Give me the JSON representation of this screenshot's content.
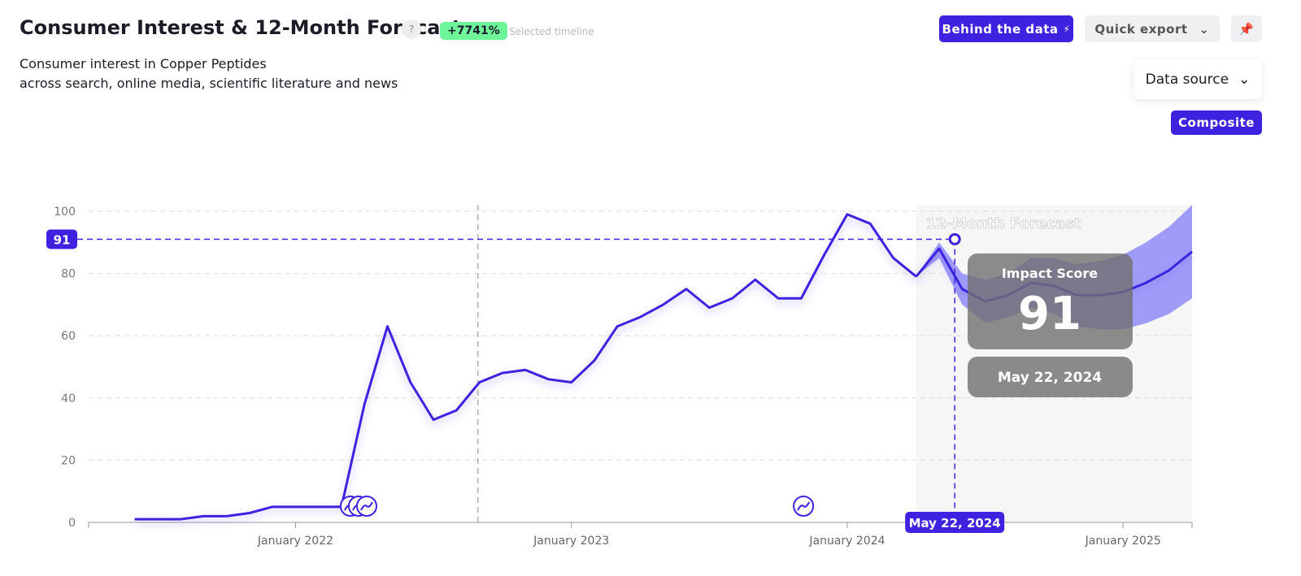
{
  "header": {
    "title": "Consumer Interest & 12-Month Forecast",
    "help": "?",
    "change_badge": "+7741%",
    "change_caption": "Selected timeline",
    "subtitle_lines": [
      "Consumer interest in Copper Peptides",
      "across search, online media, scientific literature and news"
    ]
  },
  "toolbar": {
    "behind_button": "Behind the data",
    "export_button": "Quick export",
    "source_dropdown": "Data source",
    "source_option": "Composite"
  },
  "chart_data": {
    "type": "line",
    "x": [
      "2021-06",
      "2021-07",
      "2021-08",
      "2021-09",
      "2021-10",
      "2021-11",
      "2021-12",
      "2022-01",
      "2022-02",
      "2022-03",
      "2022-04",
      "2022-05",
      "2022-06",
      "2022-07",
      "2022-08",
      "2022-09",
      "2022-10",
      "2022-11",
      "2022-12",
      "2023-01",
      "2023-02",
      "2023-03",
      "2023-04",
      "2023-05",
      "2023-06",
      "2023-07",
      "2023-08",
      "2023-09",
      "2023-10",
      "2023-11",
      "2023-12",
      "2024-01",
      "2024-02",
      "2024-03",
      "2024-04",
      "2024-05",
      "2024-06",
      "2024-07",
      "2024-08",
      "2024-09",
      "2024-10",
      "2024-11",
      "2024-12",
      "2025-01",
      "2025-02",
      "2025-03",
      "2025-04"
    ],
    "series": [
      {
        "color": "#3d22e0",
        "values": [
          1,
          1,
          1,
          2,
          2,
          3,
          5,
          5,
          5,
          5,
          38,
          63,
          45,
          33,
          36,
          45,
          48,
          49,
          46,
          45,
          52,
          63,
          66,
          70,
          75,
          69,
          72,
          78,
          72,
          72,
          86,
          99,
          96,
          85,
          79,
          null,
          null,
          null,
          null,
          null,
          null,
          null,
          null,
          null,
          null,
          null,
          null
        ]
      },
      {
        "color": "#3d22e0",
        "band_color": "#8f8cf8",
        "values": [
          null,
          null,
          null,
          null,
          null,
          null,
          null,
          null,
          null,
          null,
          null,
          null,
          null,
          null,
          null,
          null,
          null,
          null,
          null,
          null,
          null,
          null,
          null,
          null,
          null,
          null,
          null,
          null,
          null,
          null,
          null,
          null,
          null,
          null,
          79,
          88,
          75,
          71,
          73,
          77,
          76,
          73,
          73,
          74,
          77,
          81,
          87
        ],
        "upper": [
          null,
          null,
          null,
          null,
          null,
          null,
          null,
          null,
          null,
          null,
          null,
          null,
          null,
          null,
          null,
          null,
          null,
          null,
          null,
          null,
          null,
          null,
          null,
          null,
          null,
          null,
          null,
          null,
          null,
          null,
          null,
          null,
          null,
          null,
          79,
          90,
          80,
          78,
          80,
          85,
          85,
          83,
          84,
          86,
          90,
          95,
          102
        ],
        "lower": [
          null,
          null,
          null,
          null,
          null,
          null,
          null,
          null,
          null,
          null,
          null,
          null,
          null,
          null,
          null,
          null,
          null,
          null,
          null,
          null,
          null,
          null,
          null,
          null,
          null,
          null,
          null,
          null,
          null,
          null,
          null,
          null,
          null,
          null,
          79,
          85,
          70,
          64,
          66,
          69,
          67,
          63,
          62,
          62,
          64,
          67,
          72
        ]
      }
    ],
    "xlim": [
      "2021-04",
      "2025-04"
    ],
    "xticks": [
      {
        "value": "2022-01",
        "label": "January 2022"
      },
      {
        "value": "2023-01",
        "label": "January 2023"
      },
      {
        "value": "2024-01",
        "label": "January 2024"
      },
      {
        "value": "2025-01",
        "label": "January 2025"
      }
    ],
    "ylim": [
      0,
      100
    ],
    "yticks": [
      0,
      20,
      40,
      60,
      80,
      100
    ],
    "grid": true,
    "forecast_region": {
      "start": "2024-04",
      "label": "12-Month Forecast"
    },
    "reference_line": "2022-08-30",
    "events": [
      "2022-03-13",
      "2022-03-24",
      "2022-04-04",
      "2023-11-04"
    ],
    "highlight": {
      "x": "2024-05-22",
      "x_label": "May 22, 2024",
      "value": 91,
      "score_title": "Impact Score"
    }
  }
}
